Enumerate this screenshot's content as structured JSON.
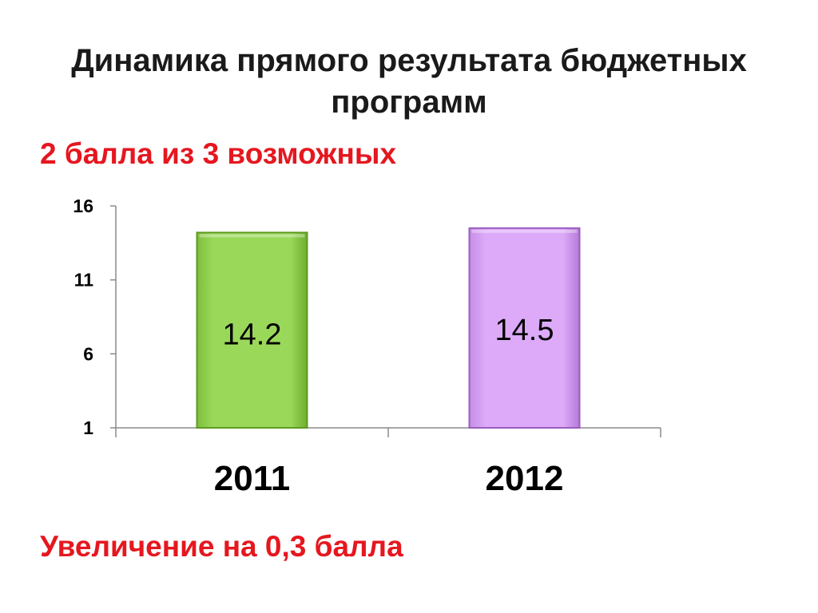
{
  "slide": {
    "title": "Динамика прямого результата бюджетных программ",
    "subtitle": "2 балла из 3 возможных",
    "footnote": "Увеличение на 0,3 балла"
  },
  "colors": {
    "title": "#1a1a1a",
    "accent_red": "#e5171f",
    "bar_2011": "#92d050",
    "bar_2011_edge": "#5f9a24",
    "bar_2012": "#d7a3f5",
    "bar_2012_edge": "#9a5dbf",
    "axis": "#8a8a8a"
  },
  "chart_data": {
    "type": "bar",
    "categories": [
      "2011",
      "2012"
    ],
    "values": [
      14.2,
      14.5
    ],
    "data_labels": [
      "14.2",
      "14.5"
    ],
    "y_ticks": [
      1,
      6,
      11,
      16
    ],
    "ylim": [
      1,
      16
    ],
    "title": "",
    "xlabel": "",
    "ylabel": "",
    "grid": false,
    "legend": "none"
  }
}
